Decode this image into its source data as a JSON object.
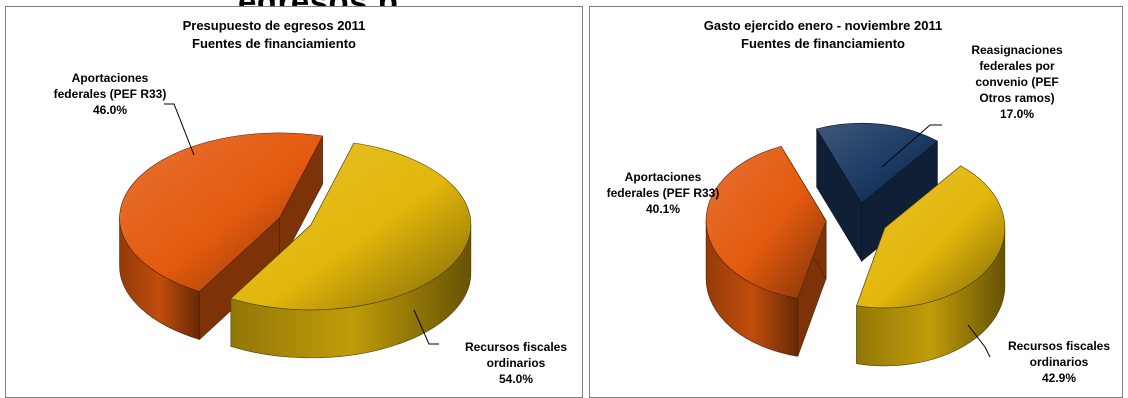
{
  "heading": "egresos p",
  "colors": {
    "federales": "#e35a0e",
    "fiscales": "#e2b70b",
    "reasignaciones": "#1c3a63"
  },
  "chart_data": [
    {
      "type": "pie",
      "title_line1": "Presupuesto de egresos 2011",
      "title_line2": "Fuentes de financiamiento",
      "slices": [
        {
          "id": "federales",
          "label_lines": [
            "Aportaciones",
            "federales (PEF R33)"
          ],
          "value": 46.0,
          "value_label": "46.0%",
          "color": "#e35a0e"
        },
        {
          "id": "fiscales",
          "label_lines": [
            "Recursos fiscales",
            "ordinarios"
          ],
          "value": 54.0,
          "value_label": "54.0%",
          "color": "#e2b70b"
        }
      ]
    },
    {
      "type": "pie",
      "title_line1": "Gasto ejercido enero - noviembre 2011",
      "title_line2": "Fuentes de financiamiento",
      "slices": [
        {
          "id": "reasignaciones",
          "label_lines": [
            "Reasignaciones",
            "federales por",
            "convenio (PEF",
            "Otros ramos)"
          ],
          "value": 17.0,
          "value_label": "17.0%",
          "color": "#1c3a63"
        },
        {
          "id": "fiscales",
          "label_lines": [
            "Recursos fiscales",
            "ordinarios"
          ],
          "value": 42.9,
          "value_label": "42.9%",
          "color": "#e2b70b"
        },
        {
          "id": "federales",
          "label_lines": [
            "Aportaciones",
            "federales (PEF R33)"
          ],
          "value": 40.1,
          "value_label": "40.1%",
          "color": "#e35a0e"
        }
      ]
    }
  ]
}
